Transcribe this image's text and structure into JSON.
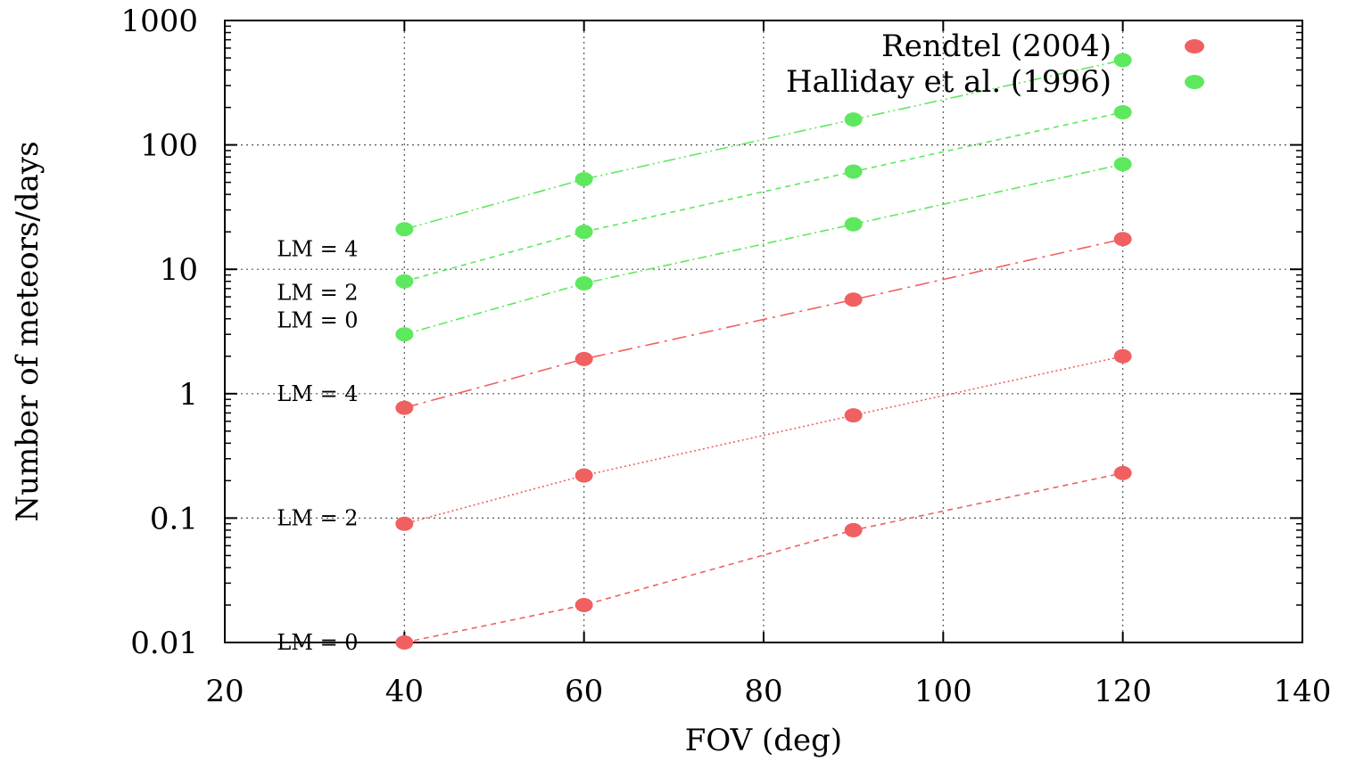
{
  "chart_data": {
    "type": "scatter",
    "xlabel": "FOV (deg)",
    "ylabel": "Number of meteors/days",
    "xlim": [
      20,
      140
    ],
    "ylim": [
      0.01,
      1000
    ],
    "y_scale": "log",
    "grid": true,
    "legend_position": "top-right",
    "x_ticks": [
      "20",
      "40",
      "60",
      "80",
      "100",
      "120",
      "140"
    ],
    "y_ticks": [
      "0.01",
      "0.1",
      "1",
      "10",
      "100",
      "1000"
    ],
    "legend": [
      {
        "label": "Rendtel (2004)",
        "color": "#f06060"
      },
      {
        "label": "Halliday et al. (1996)",
        "color": "#5ee85e"
      }
    ],
    "series": [
      {
        "legend": "Rendtel (2004)",
        "lm": "LM = 0",
        "color": "#f06060",
        "dash": "6,5",
        "x": [
          40,
          60,
          90,
          120
        ],
        "y": [
          0.01,
          0.02,
          0.08,
          0.23
        ]
      },
      {
        "legend": "Rendtel (2004)",
        "lm": "LM = 2",
        "color": "#f06060",
        "dash": "2,3",
        "x": [
          40,
          60,
          90,
          120
        ],
        "y": [
          0.09,
          0.22,
          0.67,
          2.0
        ]
      },
      {
        "legend": "Rendtel (2004)",
        "lm": "LM = 4",
        "color": "#f06060",
        "dash": "16,6,3,6",
        "x": [
          40,
          60,
          90,
          120
        ],
        "y": [
          0.77,
          1.9,
          5.7,
          17.5
        ]
      },
      {
        "legend": "Halliday et al. (1996)",
        "lm": "LM = 0",
        "color": "#5ee85e",
        "dash": "10,4,2,4",
        "x": [
          40,
          60,
          90,
          120
        ],
        "y": [
          3.0,
          7.7,
          23,
          70
        ]
      },
      {
        "legend": "Halliday et al. (1996)",
        "lm": "LM = 2",
        "color": "#5ee85e",
        "dash": "6,5",
        "x": [
          40,
          60,
          90,
          120
        ],
        "y": [
          8.0,
          20,
          61,
          183
        ]
      },
      {
        "legend": "Halliday et al. (1996)",
        "lm": "LM = 4",
        "color": "#5ee85e",
        "dash": "14,4,2,4,2,4",
        "x": [
          40,
          60,
          90,
          120
        ],
        "y": [
          21,
          53,
          160,
          480
        ]
      }
    ],
    "annotations": [
      {
        "text": "LM = 4",
        "y": 14.5
      },
      {
        "text": "LM = 2",
        "y": 6.5
      },
      {
        "text": "LM = 0",
        "y": 3.9
      },
      {
        "text": "LM = 4",
        "y": 1.0
      },
      {
        "text": "LM = 2",
        "y": 0.1
      },
      {
        "text": "LM = 0",
        "y": 0.01
      }
    ]
  }
}
